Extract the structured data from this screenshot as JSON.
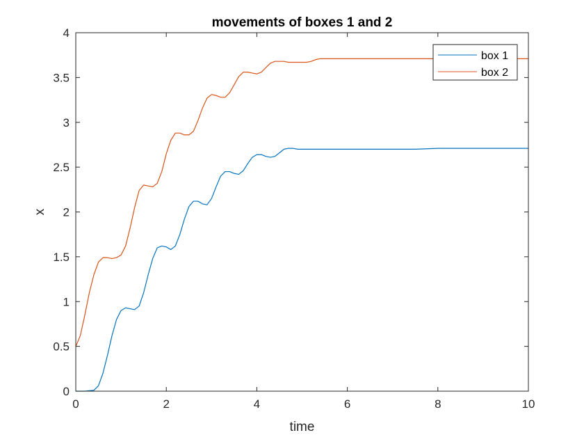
{
  "chart_data": {
    "type": "line",
    "title": "movements of boxes 1 and 2",
    "xlabel": "time",
    "ylabel": "x",
    "xlim": [
      0,
      10
    ],
    "ylim": [
      0,
      4
    ],
    "xticks": [
      0,
      2,
      4,
      6,
      8,
      10
    ],
    "yticks": [
      0,
      0.5,
      1,
      1.5,
      2,
      2.5,
      3,
      3.5,
      4
    ],
    "grid": false,
    "legend": {
      "position": "top-right",
      "entries": [
        "box 1",
        "box 2"
      ]
    },
    "series": [
      {
        "name": "box 1",
        "color": "#0072BD",
        "x": [
          0,
          0.2,
          0.4,
          0.5,
          0.6,
          0.7,
          0.8,
          0.9,
          1.0,
          1.1,
          1.2,
          1.3,
          1.4,
          1.5,
          1.6,
          1.7,
          1.8,
          1.9,
          2.0,
          2.1,
          2.2,
          2.3,
          2.4,
          2.5,
          2.6,
          2.7,
          2.8,
          2.9,
          3.0,
          3.1,
          3.2,
          3.3,
          3.4,
          3.5,
          3.6,
          3.7,
          3.8,
          3.9,
          4.0,
          4.1,
          4.2,
          4.3,
          4.4,
          4.5,
          4.6,
          4.7,
          4.8,
          4.9,
          5.0,
          5.1,
          5.2,
          5.3,
          5.4,
          5.5,
          5.6,
          5.8,
          6.0,
          6.5,
          7.0,
          7.5,
          8.0,
          9.0,
          10.0
        ],
        "y": [
          0,
          0,
          0.01,
          0.06,
          0.2,
          0.4,
          0.62,
          0.8,
          0.9,
          0.93,
          0.92,
          0.91,
          0.95,
          1.1,
          1.3,
          1.48,
          1.6,
          1.62,
          1.61,
          1.58,
          1.62,
          1.75,
          1.92,
          2.06,
          2.12,
          2.12,
          2.09,
          2.08,
          2.15,
          2.28,
          2.4,
          2.45,
          2.45,
          2.43,
          2.42,
          2.46,
          2.54,
          2.61,
          2.64,
          2.64,
          2.62,
          2.61,
          2.62,
          2.66,
          2.7,
          2.71,
          2.71,
          2.7,
          2.7,
          2.7,
          2.7,
          2.7,
          2.7,
          2.7,
          2.7,
          2.7,
          2.7,
          2.7,
          2.7,
          2.7,
          2.71,
          2.71,
          2.71
        ]
      },
      {
        "name": "box 2",
        "color": "#D95319",
        "x": [
          0,
          0.1,
          0.2,
          0.3,
          0.4,
          0.5,
          0.6,
          0.7,
          0.8,
          0.9,
          1.0,
          1.1,
          1.2,
          1.3,
          1.4,
          1.5,
          1.6,
          1.7,
          1.8,
          1.9,
          2.0,
          2.1,
          2.2,
          2.3,
          2.4,
          2.5,
          2.6,
          2.7,
          2.8,
          2.9,
          3.0,
          3.1,
          3.2,
          3.3,
          3.4,
          3.5,
          3.6,
          3.7,
          3.8,
          3.9,
          4.0,
          4.1,
          4.2,
          4.3,
          4.4,
          4.5,
          4.6,
          4.7,
          4.8,
          4.9,
          5.0,
          5.1,
          5.2,
          5.3,
          5.4,
          5.5,
          5.6,
          5.8,
          6.0,
          6.5,
          7.0,
          8.0,
          9.0,
          10.0
        ],
        "y": [
          0.5,
          0.62,
          0.85,
          1.1,
          1.3,
          1.44,
          1.49,
          1.49,
          1.48,
          1.49,
          1.52,
          1.62,
          1.82,
          2.05,
          2.24,
          2.3,
          2.29,
          2.28,
          2.32,
          2.45,
          2.65,
          2.8,
          2.88,
          2.88,
          2.86,
          2.86,
          2.9,
          3.02,
          3.16,
          3.27,
          3.31,
          3.3,
          3.28,
          3.28,
          3.33,
          3.42,
          3.51,
          3.56,
          3.56,
          3.55,
          3.54,
          3.56,
          3.61,
          3.66,
          3.68,
          3.68,
          3.68,
          3.67,
          3.67,
          3.67,
          3.67,
          3.67,
          3.68,
          3.7,
          3.71,
          3.71,
          3.71,
          3.71,
          3.71,
          3.71,
          3.71,
          3.71,
          3.71,
          3.71
        ]
      }
    ]
  }
}
